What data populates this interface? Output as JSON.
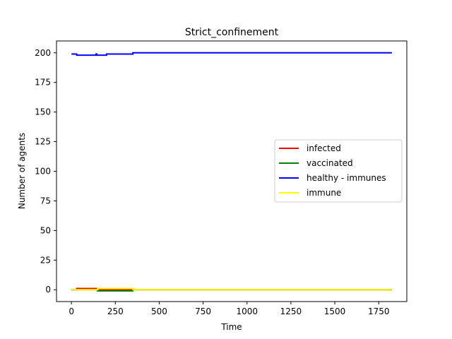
{
  "chart_data": {
    "type": "line",
    "title": "Strict_confinement",
    "xlabel": "Time",
    "ylabel": "Number of agents",
    "xlim": [
      -85,
      1910
    ],
    "ylim": [
      -10,
      210
    ],
    "xticks": [
      0,
      250,
      500,
      750,
      1000,
      1250,
      1500,
      1750
    ],
    "yticks": [
      0,
      25,
      50,
      75,
      100,
      125,
      150,
      175,
      200
    ],
    "grid": false,
    "legend_position": "center-right",
    "series": [
      {
        "name": "infected",
        "color": "#ff0000",
        "points": [
          [
            0,
            0
          ],
          [
            30,
            0
          ],
          [
            30,
            1
          ],
          [
            148,
            1
          ],
          [
            148,
            0
          ],
          [
            1825,
            0
          ]
        ]
      },
      {
        "name": "vaccinated",
        "color": "#008000",
        "points": [
          [
            0,
            0
          ],
          [
            148,
            0
          ],
          [
            148,
            -1
          ],
          [
            350,
            -1
          ],
          [
            350,
            0
          ],
          [
            1825,
            0
          ]
        ]
      },
      {
        "name": "healthy - immunes",
        "color": "#0000ff",
        "points": [
          [
            0,
            199
          ],
          [
            30,
            199
          ],
          [
            30,
            198
          ],
          [
            140,
            198
          ],
          [
            140,
            199
          ],
          [
            145,
            199
          ],
          [
            145,
            198
          ],
          [
            200,
            198
          ],
          [
            200,
            199
          ],
          [
            350,
            199
          ],
          [
            350,
            200
          ],
          [
            1825,
            200
          ]
        ]
      },
      {
        "name": "immune",
        "color": "#ffff00",
        "points": [
          [
            0,
            0
          ],
          [
            150,
            0
          ],
          [
            150,
            1
          ],
          [
            350,
            1
          ],
          [
            350,
            0
          ],
          [
            1825,
            0
          ]
        ]
      }
    ]
  }
}
